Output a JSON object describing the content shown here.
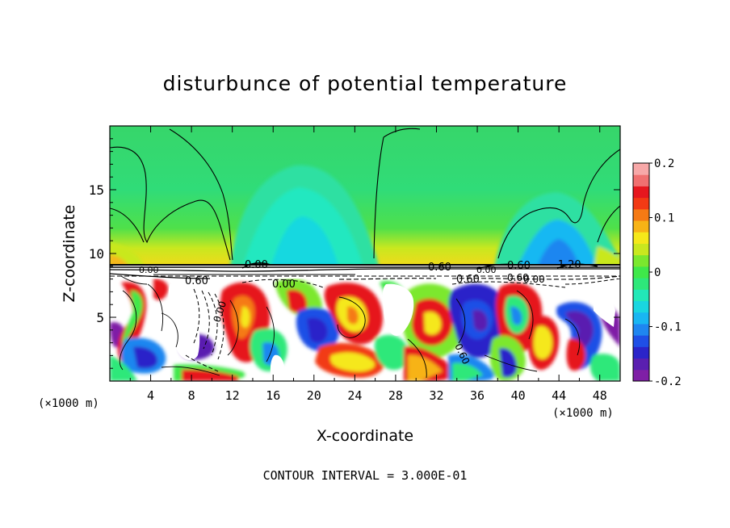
{
  "chart_data": {
    "type": "heatmap",
    "title": "disturbunce of potential temperature",
    "xlabel": "X-coordinate",
    "ylabel": "Z-coordinate",
    "x_unit": "(×1000 m)",
    "y_unit": "(×1000 m)",
    "xlim": [
      0,
      50
    ],
    "ylim": [
      0,
      20
    ],
    "x_ticks": [
      "4",
      "8",
      "12",
      "16",
      "20",
      "24",
      "28",
      "32",
      "36",
      "40",
      "44",
      "48"
    ],
    "y_ticks": [
      "5",
      "10",
      "15"
    ],
    "colorbar": {
      "range": [
        -0.2,
        0.2
      ],
      "tick_labels": [
        "0.2",
        "0.1",
        "0",
        "-0.1",
        "-0.2"
      ],
      "colors": [
        "#7f1fa6",
        "#5a1fb0",
        "#2b24c9",
        "#1f4fe6",
        "#1f86f0",
        "#19b6f2",
        "#19d6e0",
        "#22e8b8",
        "#2ee87a",
        "#3fe84a",
        "#7be82e",
        "#c9e81f",
        "#f5e81a",
        "#f7b316",
        "#f57a14",
        "#f23a14",
        "#e6171e",
        "#f07070",
        "#f7a8a8"
      ]
    },
    "contour_labels": [
      "0.00",
      "0.60",
      "0.00",
      "0.60",
      "0.60",
      "0.60",
      "-1.20",
      "0.60",
      "0.00",
      "0.60",
      "0.00",
      "0.00",
      "0.00"
    ],
    "footer": "CONTOUR INTERVAL = 3.000E-01"
  }
}
